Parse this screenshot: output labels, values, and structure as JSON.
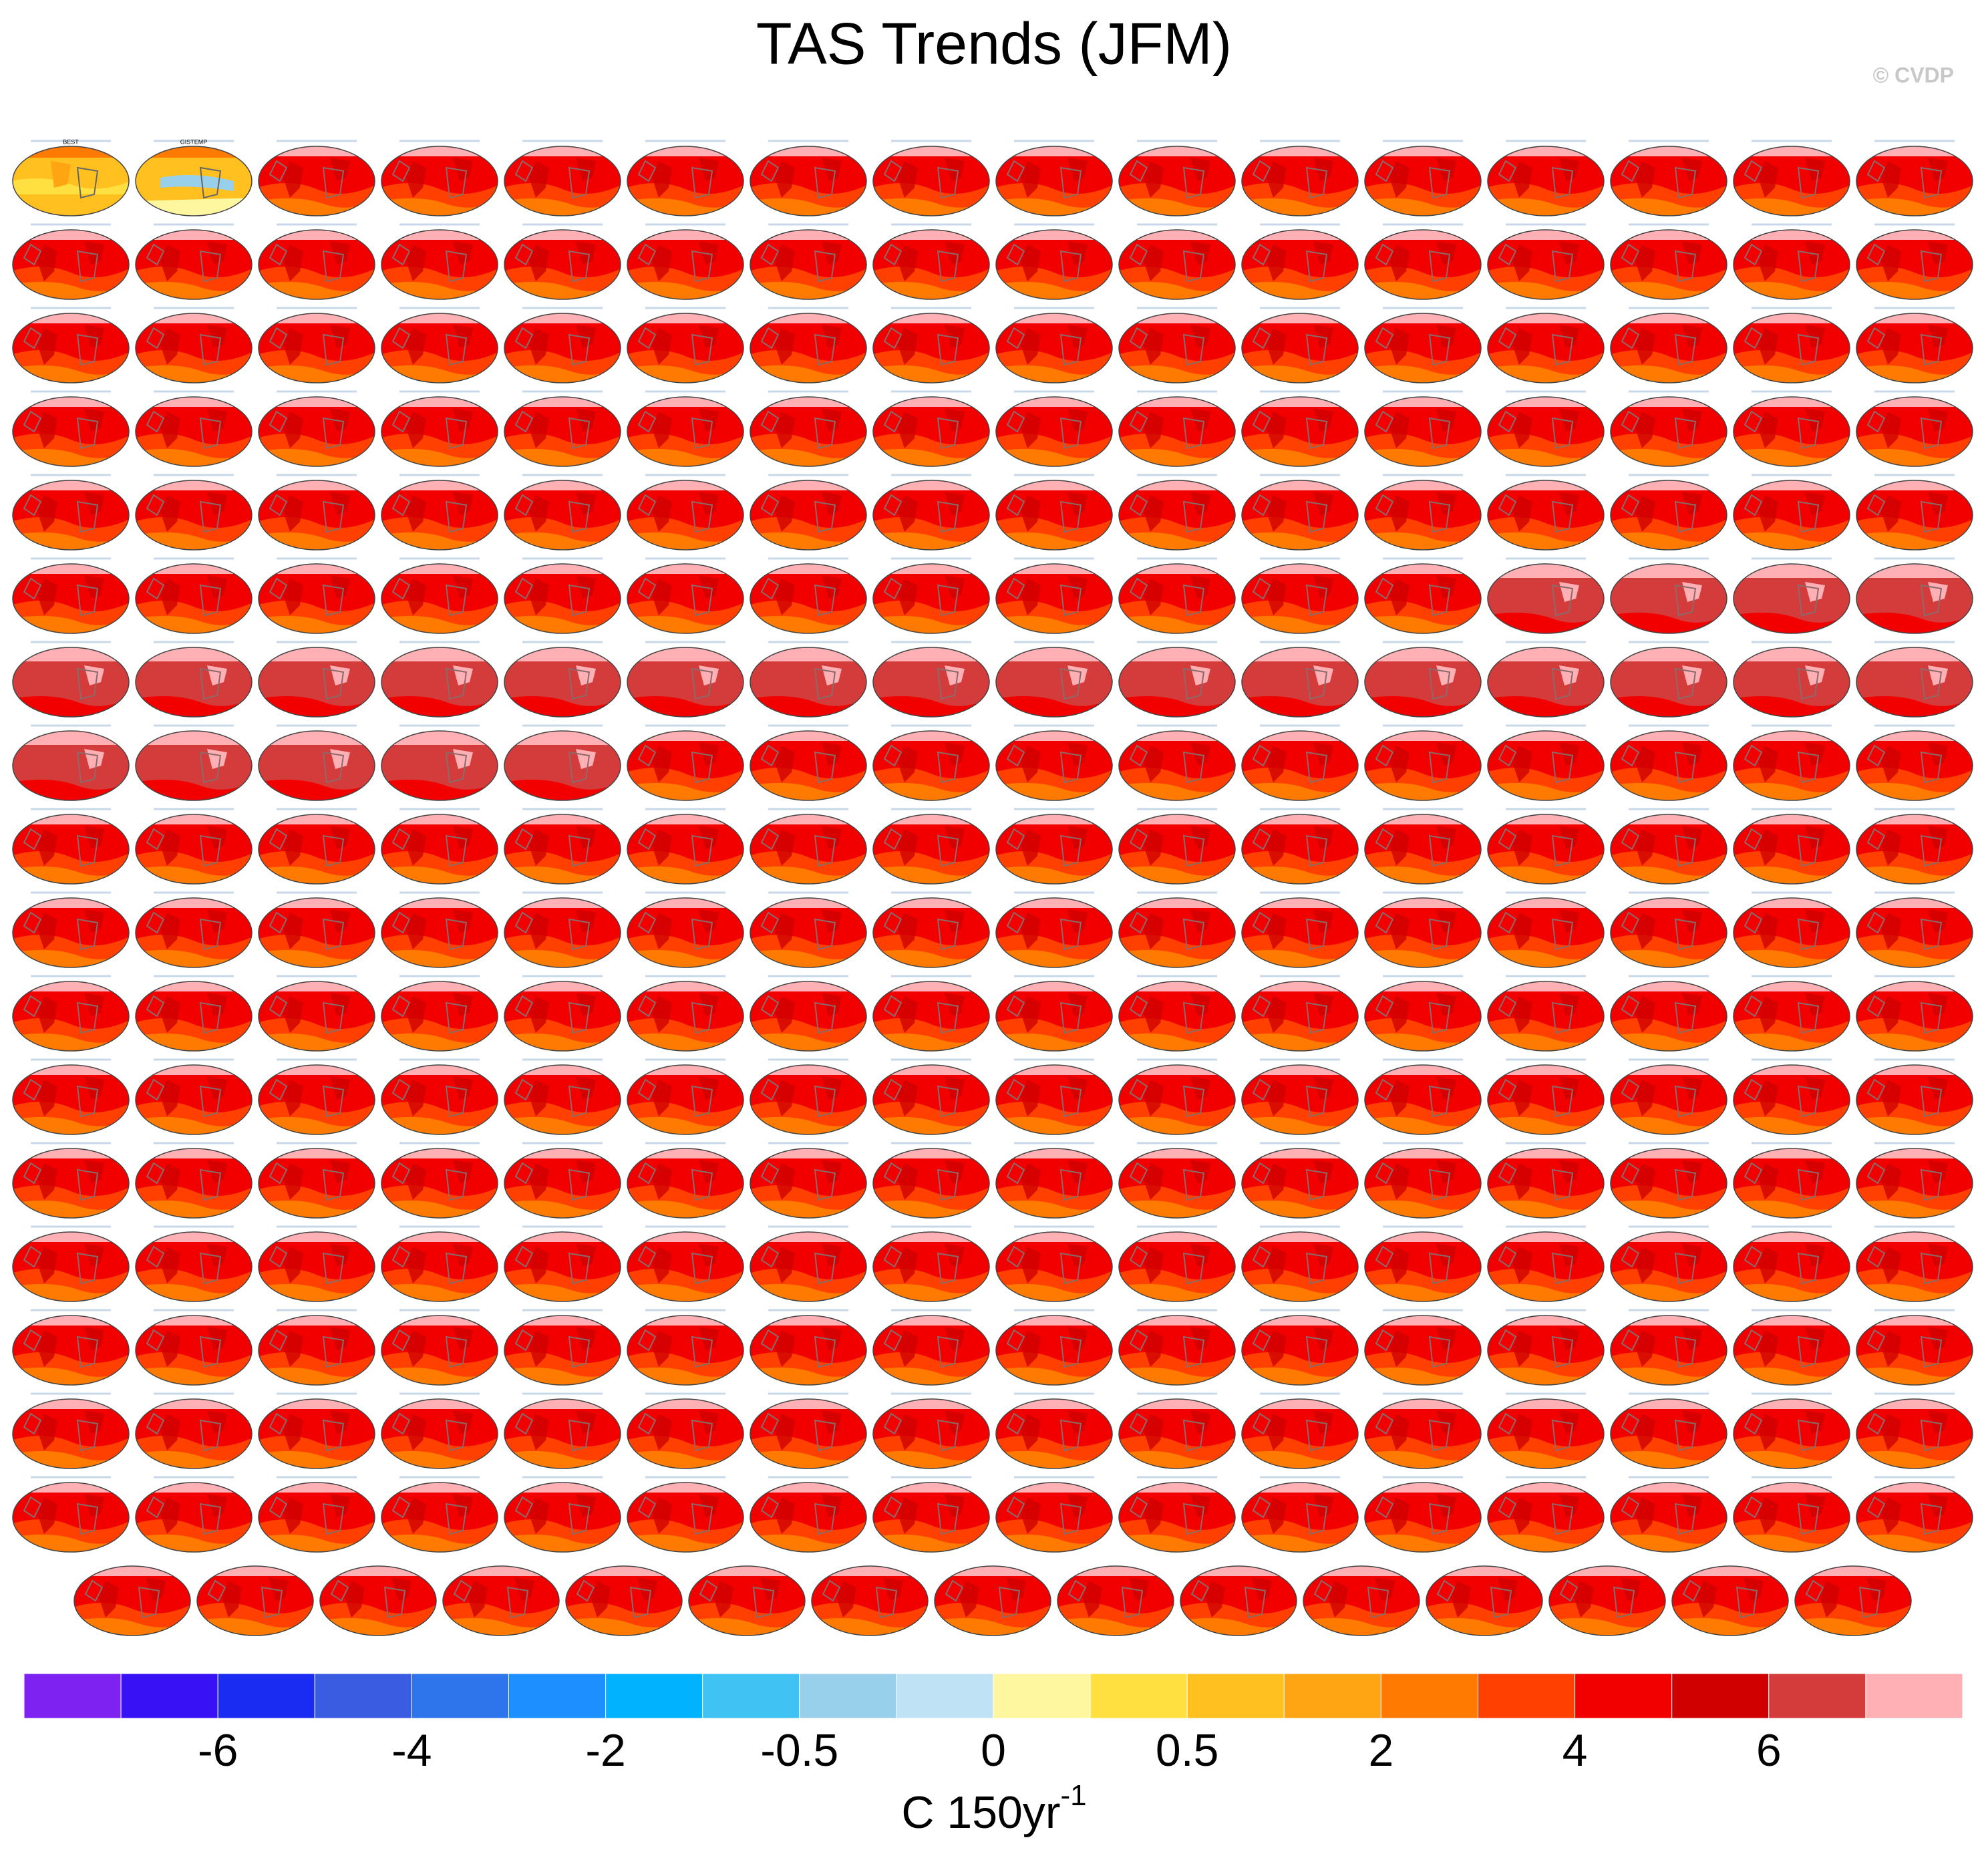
{
  "chart_data": {
    "type": "map-panels",
    "title": "TAS Trends (JFM)",
    "credit": "© CVDP",
    "panels": [
      {
        "title": "BEST"
      },
      {
        "title": "GISTEMP"
      }
    ],
    "colorbar": {
      "colors": [
        "#7d22f0",
        "#3812f5",
        "#1a2cf2",
        "#3a5ce0",
        "#2e74ea",
        "#1e8fff",
        "#00b2ff",
        "#40c2f2",
        "#98d0ec",
        "#bfe3f5",
        "#fff6a0",
        "#ffe040",
        "#ffc020",
        "#ffa412",
        "#ff7a00",
        "#ff4000",
        "#f20000",
        "#d00000",
        "#d43c3c",
        "#ffb0b4"
      ],
      "ticks": [
        -6,
        -4,
        -2,
        -0.5,
        0,
        0.5,
        2,
        4,
        6
      ],
      "units": "C 150yr",
      "units_exponent": "-1"
    }
  }
}
